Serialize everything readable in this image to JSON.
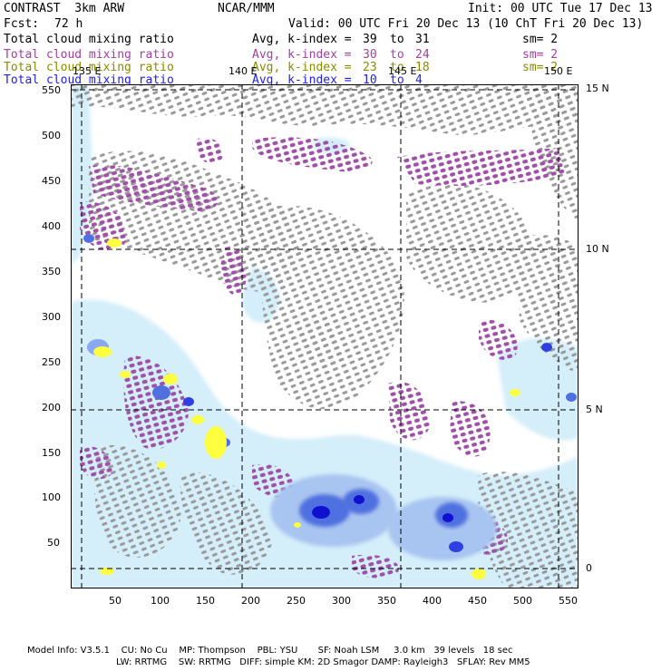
{
  "header": {
    "title": "CONTRAST  3km ARW",
    "institution": "NCAR/MMM",
    "init": "Init: 00 UTC Tue 17 Dec 13",
    "fcst_label": "Fcst:",
    "fcst_value": "72 h",
    "valid": "Valid: 00 UTC Fri 20 Dec 13 (10 ChT Fri 20 Dec 13)"
  },
  "fields": [
    {
      "name": "Total cloud mixing ratio",
      "kindex": "Avg, k-index =",
      "from": "39",
      "to_word": "to",
      "to": "31",
      "sm": "sm= 2",
      "color": "#000000"
    },
    {
      "name": "Total cloud mixing ratio",
      "kindex": "Avg, k-index =",
      "from": "30",
      "to_word": "to",
      "to": "24",
      "sm": "sm= 2",
      "color": "#a040a0"
    },
    {
      "name": "Total cloud mixing ratio",
      "kindex": "Avg, k-index =",
      "from": "23",
      "to_word": "to",
      "to": "18",
      "sm": "sm= 2",
      "color": "#8a8a00"
    },
    {
      "name": "Total cloud mixing ratio",
      "kindex": "Avg, k-index =",
      "from": "10",
      "to_word": "to",
      "to": "4",
      "sm": "",
      "color": "#2020e0"
    }
  ],
  "map": {
    "x_ticks": [
      "50",
      "100",
      "150",
      "200",
      "250",
      "300",
      "350",
      "400",
      "450",
      "500",
      "550"
    ],
    "y_ticks": [
      "50",
      "100",
      "150",
      "200",
      "250",
      "300",
      "350",
      "400",
      "450",
      "500",
      "550"
    ],
    "lon_labels": [
      "135 E",
      "140 E",
      "145 E",
      "150 E"
    ],
    "lat_labels": [
      "15 N",
      "10 N",
      "5 N",
      "0"
    ],
    "colors": {
      "gray": "#9a9a9a",
      "purple": "#a050a8",
      "yellow": "#ffff40",
      "lightblue": "#d4eefa",
      "blue": "#4060e0",
      "darkblue": "#1010d0"
    }
  },
  "footer": {
    "line1": "Model Info: V3.5.1    CU: No Cu    MP: Thompson    PBL: YSU       SF: Noah LSM     3.0 km   39 levels   18 sec",
    "line2": "LW: RRTMG    SW: RRTMG   DIFF: simple KM: 2D Smagor DAMP: Rayleigh3   SFLAY: Rev MM5"
  }
}
